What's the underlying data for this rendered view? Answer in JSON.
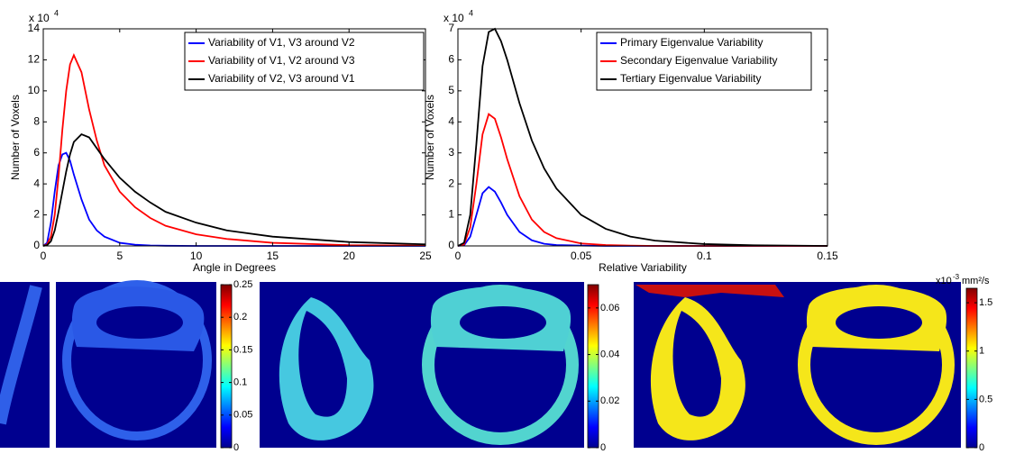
{
  "chart_data": [
    {
      "type": "line",
      "y_label": "Number of Voxels",
      "x_label": "Angle in Degrees",
      "y_multiplier": "x 10",
      "y_multiplier_exponent": "4",
      "x": [
        0,
        0.25,
        0.5,
        0.75,
        1,
        1.25,
        1.5,
        1.75,
        2,
        2.5,
        3,
        3.5,
        4,
        5,
        6,
        7,
        8,
        10,
        12,
        15,
        20,
        25
      ],
      "series": [
        {
          "name": "Variability of V1, V3 around V2",
          "color": "#0000ff",
          "values": [
            0,
            0.2,
            1.5,
            3.5,
            5.2,
            5.9,
            6.0,
            5.5,
            4.6,
            3.0,
            1.7,
            1.0,
            0.6,
            0.2,
            0.08,
            0.03,
            0.01,
            0,
            0,
            0,
            0,
            0
          ]
        },
        {
          "name": "Variability of V1, V2 around V3",
          "color": "#ff0000",
          "values": [
            0,
            0.1,
            0.6,
            2,
            4.5,
            7.5,
            10,
            11.7,
            12.3,
            11.2,
            8.8,
            6.8,
            5.2,
            3.5,
            2.5,
            1.8,
            1.3,
            0.75,
            0.45,
            0.2,
            0.05,
            0.02
          ]
        },
        {
          "name": "Variability of V2, V3 around V1",
          "color": "#000000",
          "values": [
            0,
            0.05,
            0.3,
            1,
            2.2,
            3.5,
            4.8,
            5.9,
            6.7,
            7.2,
            7.0,
            6.3,
            5.6,
            4.4,
            3.5,
            2.8,
            2.2,
            1.5,
            1.0,
            0.6,
            0.25,
            0.1
          ]
        }
      ],
      "xlim": [
        0,
        25
      ],
      "xticks": [
        0,
        5,
        10,
        15,
        20,
        25
      ],
      "ylim": [
        0,
        14
      ],
      "yticks": [
        0,
        2,
        4,
        6,
        8,
        10,
        12,
        14
      ],
      "legend": "upper right"
    },
    {
      "type": "line",
      "y_label": "Number of Voxels",
      "x_label": "Relative Variability",
      "y_multiplier": "x 10",
      "y_multiplier_exponent": "4",
      "x": [
        0,
        0.0025,
        0.005,
        0.0075,
        0.01,
        0.0125,
        0.015,
        0.0175,
        0.02,
        0.025,
        0.03,
        0.035,
        0.04,
        0.05,
        0.06,
        0.07,
        0.08,
        0.1,
        0.12,
        0.15
      ],
      "series": [
        {
          "name": "Primary Eigenvalue Variability",
          "color": "#0000ff",
          "values": [
            0,
            0.02,
            0.3,
            1.0,
            1.7,
            1.9,
            1.75,
            1.4,
            1.0,
            0.45,
            0.18,
            0.07,
            0.03,
            0.01,
            0,
            0,
            0,
            0,
            0,
            0
          ]
        },
        {
          "name": "Secondary Eigenvalue Variability",
          "color": "#ff0000",
          "values": [
            0,
            0.05,
            0.6,
            2.0,
            3.6,
            4.25,
            4.1,
            3.5,
            2.8,
            1.6,
            0.85,
            0.45,
            0.25,
            0.08,
            0.03,
            0.01,
            0,
            0,
            0,
            0
          ]
        },
        {
          "name": "Tertiary Eigenvalue Variability",
          "color": "#000000",
          "values": [
            0,
            0.1,
            1.0,
            3.3,
            5.8,
            6.9,
            7.0,
            6.6,
            6.0,
            4.6,
            3.4,
            2.5,
            1.85,
            1.0,
            0.55,
            0.3,
            0.17,
            0.06,
            0.02,
            0
          ]
        }
      ],
      "xlim": [
        0,
        0.15
      ],
      "xticks": [
        0,
        0.05,
        0.1,
        0.15
      ],
      "ylim": [
        0,
        7
      ],
      "yticks": [
        0,
        1,
        2,
        3,
        4,
        5,
        6,
        7
      ],
      "legend": "upper right"
    }
  ],
  "colorbars": [
    {
      "lim": [
        0,
        0.25
      ],
      "ticks": [
        0,
        0.05,
        0.1,
        0.15,
        0.2,
        0.25
      ]
    },
    {
      "lim": [
        0,
        0.07
      ],
      "ticks": [
        0,
        0.02,
        0.04,
        0.06
      ]
    },
    {
      "lim": [
        0,
        1.65
      ],
      "ticks": [
        0,
        0.5,
        1,
        1.5
      ],
      "unit_prefix": "x10",
      "unit_exponent": "-3",
      "unit": "mm²/s"
    }
  ]
}
